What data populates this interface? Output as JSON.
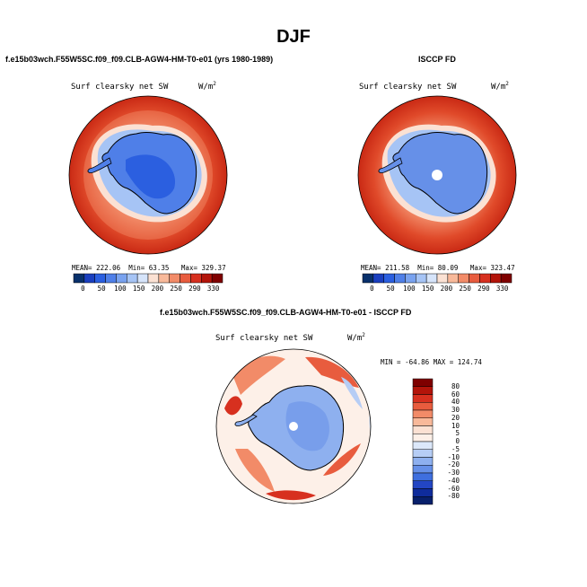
{
  "figure": {
    "title": "DJF",
    "units_base": "W/m",
    "units_exp": "2"
  },
  "chart_data": [
    {
      "type": "heatmap",
      "projection": "south-polar-stereographic",
      "case_label": "f.e15b03wch.F55W5SC.f09_f09.CLB-AGW4-HM-T0-e01 (yrs 1980-1989)",
      "variable": "Surf clearsky net SW",
      "mean_label": "MEAN=",
      "mean": "222.06",
      "min_label": "Min=",
      "min": "63.35",
      "max_label": "Max=",
      "max": "329.37",
      "colorbar_ticks": [
        "0",
        "50",
        "100",
        "150",
        "200",
        "250",
        "290",
        "330"
      ],
      "colors": [
        "#08306b",
        "#1a3fbf",
        "#2b5fe0",
        "#4f7fe8",
        "#79a2ef",
        "#a6c4f5",
        "#d6e4fa",
        "#fbe1d3",
        "#f8b99a",
        "#f28b68",
        "#e85c3e",
        "#d7301f",
        "#b3140a",
        "#7f0000"
      ]
    },
    {
      "type": "heatmap",
      "projection": "south-polar-stereographic",
      "case_label": "ISCCP FD",
      "variable": "Surf clearsky net SW",
      "mean_label": "MEAN=",
      "mean": "211.58",
      "min_label": "Min=",
      "min": "80.09",
      "max_label": "Max=",
      "max": "323.47",
      "colorbar_ticks": [
        "0",
        "50",
        "100",
        "150",
        "200",
        "250",
        "290",
        "330"
      ],
      "colors": [
        "#08306b",
        "#1a3fbf",
        "#2b5fe0",
        "#4f7fe8",
        "#79a2ef",
        "#a6c4f5",
        "#d6e4fa",
        "#fbe1d3",
        "#f8b99a",
        "#f28b68",
        "#e85c3e",
        "#d7301f",
        "#b3140a",
        "#7f0000"
      ]
    },
    {
      "type": "heatmap",
      "projection": "south-polar-stereographic",
      "case_label": "f.e15b03wch.F55W5SC.f09_f09.CLB-AGW4-HM-T0-e01 - ISCCP FD",
      "variable": "Surf clearsky net SW",
      "minmax_text": "MIN = -64.86 MAX = 124.74",
      "min": -64.86,
      "max": 124.74,
      "colorbar_ticks": [
        "80",
        "60",
        "40",
        "30",
        "20",
        "10",
        "5",
        "0",
        "-5",
        "-10",
        "-20",
        "-30",
        "-40",
        "-60",
        "-80"
      ],
      "colors": [
        "#7f0000",
        "#b3140a",
        "#d7301f",
        "#e85c3e",
        "#f28b68",
        "#f8b99a",
        "#fbe1d3",
        "#fdf0e8",
        "#dce8fa",
        "#b6cdf5",
        "#8eb0ef",
        "#6690e8",
        "#3f6fdf",
        "#2346c4",
        "#0f2c9c",
        "#08206b"
      ]
    }
  ]
}
